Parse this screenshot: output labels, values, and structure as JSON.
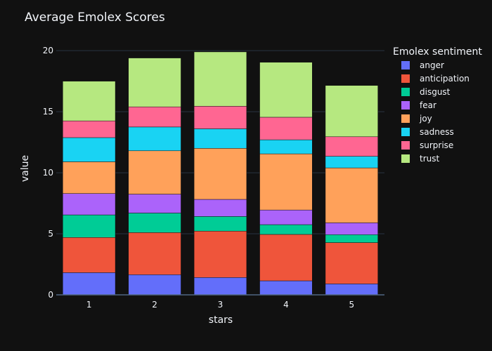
{
  "chart_data": {
    "type": "bar",
    "stacked": true,
    "title": "Average Emolex Scores",
    "xlabel": "stars",
    "ylabel": "value",
    "categories": [
      "1",
      "2",
      "3",
      "4",
      "5"
    ],
    "ylim": [
      0,
      20.7
    ],
    "yticks": [
      0,
      5,
      10,
      15,
      20
    ],
    "grid": true,
    "legend_title": "Emolex sentiment",
    "legend_position": "right",
    "series": [
      {
        "name": "anger",
        "color": "#636efa",
        "values": [
          1.82,
          1.65,
          1.42,
          1.15,
          0.9
        ]
      },
      {
        "name": "anticipation",
        "color": "#ef553b",
        "values": [
          2.88,
          3.45,
          3.8,
          3.8,
          3.38
        ]
      },
      {
        "name": "disgust",
        "color": "#00cc96",
        "values": [
          1.85,
          1.6,
          1.2,
          0.8,
          0.65
        ]
      },
      {
        "name": "fear",
        "color": "#ab63fa",
        "values": [
          1.75,
          1.55,
          1.4,
          1.2,
          0.97
        ]
      },
      {
        "name": "joy",
        "color": "#ffa15a",
        "values": [
          2.6,
          3.55,
          4.18,
          4.6,
          4.5
        ]
      },
      {
        "name": "sadness",
        "color": "#19d3f3",
        "values": [
          1.98,
          1.95,
          1.6,
          1.15,
          0.95
        ]
      },
      {
        "name": "surprise",
        "color": "#ff6692",
        "values": [
          1.37,
          1.65,
          1.85,
          1.85,
          1.6
        ]
      },
      {
        "name": "trust",
        "color": "#b6e880",
        "values": [
          3.25,
          4.0,
          4.45,
          4.5,
          4.2
        ]
      }
    ]
  }
}
